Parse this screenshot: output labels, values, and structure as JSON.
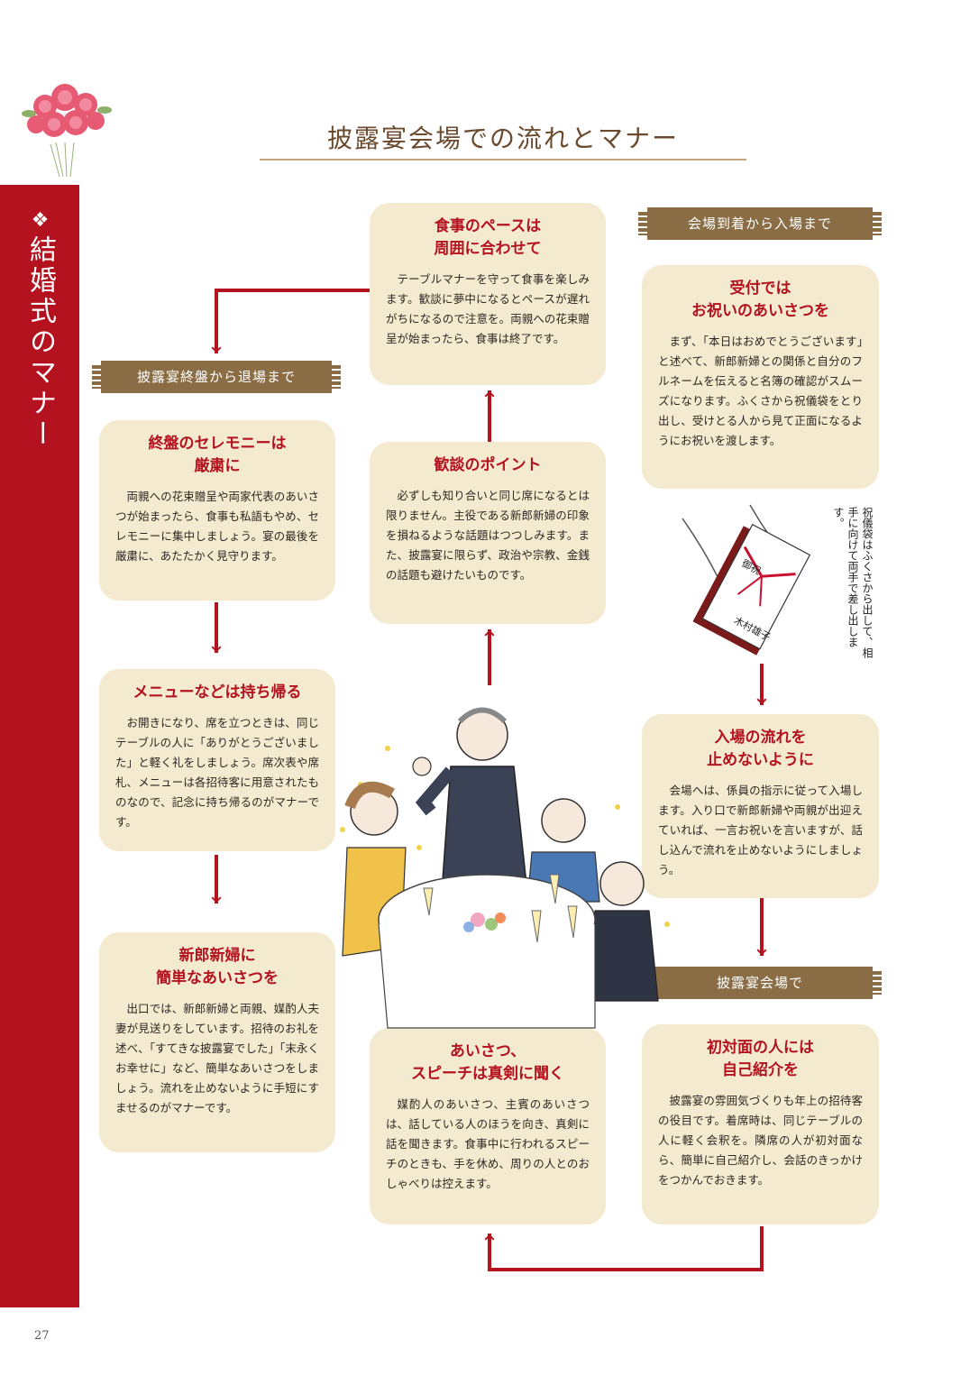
{
  "page": {
    "title": "披露宴会場での流れとマナー",
    "sidebar_mark": "❖",
    "sidebar_title": "結婚式のマナー",
    "page_number": "27"
  },
  "banners": {
    "arrival": "会場到着から入場まで",
    "venue": "披露宴会場で",
    "ending": "披露宴終盤から退場まで"
  },
  "boxes": {
    "reception": {
      "title_l1": "受付では",
      "title_l2": "お祝いのあいさつを",
      "body": "まず、「本日はおめでとうございます」と述べて、新郎新婦との関係と自分のフルネームを伝えると名簿の確認がスムーズになります。ふくさから祝儀袋をとり出し、受けとる人から見て正面になるようにお祝いを渡します。"
    },
    "entry": {
      "title_l1": "入場の流れを",
      "title_l2": "止めないように",
      "body": "会場へは、係員の指示に従って入場します。入り口で新郎新婦や両親が出迎えていれば、一言お祝いを言いますが、話し込んで流れを止めないようにしましょう。"
    },
    "intro": {
      "title_l1": "初対面の人には",
      "title_l2": "自己紹介を",
      "body": "披露宴の雰囲気づくりも年上の招待客の役目です。着席時は、同じテーブルの人に軽く会釈を。隣席の人が初対面なら、簡単に自己紹介し、会話のきっかけをつかんでおきます。"
    },
    "speech": {
      "title_l1": "あいさつ、",
      "title_l2": "スピーチは真剣に聞く",
      "body": "媒酌人のあいさつ、主賓のあいさつは、話している人のほうを向き、真剣に話を聞きます。食事中に行われるスピーチのときも、手を休め、周りの人とのおしゃべりは控えます。"
    },
    "chat": {
      "title_l1": "歓談のポイント",
      "title_l2": "",
      "body": "必ずしも知り合いと同じ席になるとは限りません。主役である新郎新婦の印象を損ねるような話題はつつしみます。また、披露宴に限らず、政治や宗教、金銭の話題も避けたいものです。"
    },
    "meal": {
      "title_l1": "食事のペースは",
      "title_l2": "周囲に合わせて",
      "body": "テーブルマナーを守って食事を楽しみます。歓談に夢中になるとペースが遅れがちになるので注意を。両親への花束贈呈が始まったら、食事は終了です。"
    },
    "ceremony": {
      "title_l1": "終盤のセレモニーは",
      "title_l2": "厳粛に",
      "body": "両親への花束贈呈や両家代表のあいさつが始まったら、食事も私語もやめ、セレモニーに集中しましょう。宴の最後を厳粛に、あたたかく見守ります。"
    },
    "menu": {
      "title_l1": "メニューなどは持ち帰る",
      "title_l2": "",
      "body": "お開きになり、席を立つときは、同じテーブルの人に「ありがとうございました」と軽く礼をしましょう。席次表や席札、メニューは各招待客に用意されたものなので、記念に持ち帰るのがマナーです。"
    },
    "exit": {
      "title_l1": "新郎新婦に",
      "title_l2": "簡単なあいさつを",
      "body": "出口では、新郎新婦と両親、媒酌人夫妻が見送りをしています。招待のお礼を述べ、「すてきな披露宴でした」「末永くお幸せに」など、簡単なあいさつをしましょう。流れを止めないように手短にすませるのがマナーです。"
    }
  },
  "illustration": {
    "note": "祝儀袋はふくさから出して、相手に向けて両手で差し出します。",
    "envelope_top": "御祝",
    "envelope_name": "木村雄子"
  },
  "colors": {
    "accent_red": "#b4121f",
    "box_bg": "#f3ead0",
    "banner_brown": "#8a6d45"
  }
}
